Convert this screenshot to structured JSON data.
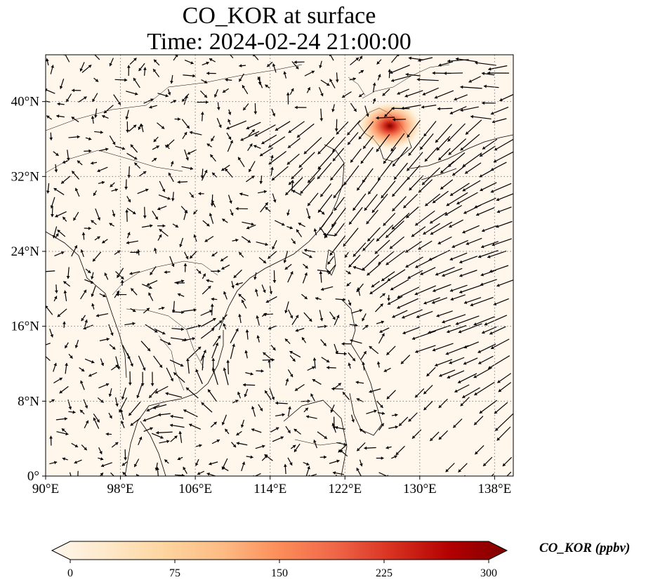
{
  "title": {
    "line1": "CO_KOR at surface",
    "line2": "Time: 2024-02-24 21:00:00"
  },
  "map": {
    "projection": "PlateCarree",
    "lon_range": [
      90,
      140
    ],
    "lat_range": [
      0,
      45
    ],
    "x_ticks": [
      {
        "lon": 90,
        "label": "90°E"
      },
      {
        "lon": 98,
        "label": "98°E"
      },
      {
        "lon": 106,
        "label": "106°E"
      },
      {
        "lon": 114,
        "label": "114°E"
      },
      {
        "lon": 122,
        "label": "122°E"
      },
      {
        "lon": 130,
        "label": "130°E"
      },
      {
        "lon": 138,
        "label": "138°E"
      }
    ],
    "y_ticks": [
      {
        "lat": 0,
        "label": "0°"
      },
      {
        "lat": 8,
        "label": "8°N"
      },
      {
        "lat": 16,
        "label": "16°N"
      },
      {
        "lat": 24,
        "label": "24°N"
      },
      {
        "lat": 32,
        "label": "32°N"
      },
      {
        "lat": 40,
        "label": "40°N"
      }
    ],
    "gridlines": true,
    "background_color": "#fff7ec",
    "wind_vectors": true,
    "co_hotspot": {
      "lon": 126.8,
      "lat": 37.4,
      "region": "Korea"
    }
  },
  "colorbar": {
    "label": "CO_KOR (ppbv)",
    "ticks": [
      "0",
      "75",
      "150",
      "225",
      "300"
    ],
    "range": [
      0,
      300
    ],
    "colormap": "OrRd",
    "colors": [
      "#fff7ec",
      "#fee8c8",
      "#fdd49e",
      "#fdbb84",
      "#fc8d59",
      "#ef6548",
      "#d7301f",
      "#b30000",
      "#7f0000"
    ],
    "extend": "both"
  }
}
